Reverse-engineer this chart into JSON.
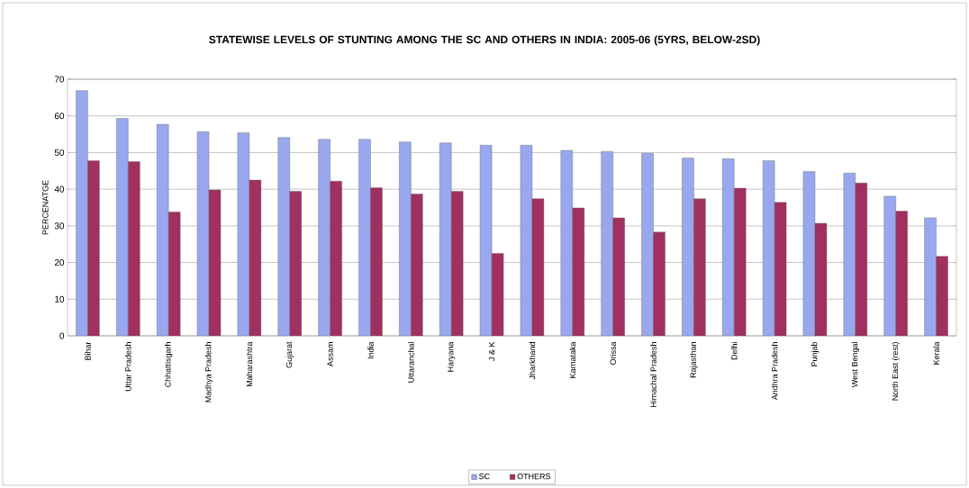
{
  "chart_data": {
    "type": "bar",
    "title": "STATEWISE LEVELS OF STUNTING AMONG THE SC AND OTHERS IN INDIA: 2005-06 (5YRS, BELOW-2SD)",
    "ylabel": "PERCENATGE",
    "categories": [
      "Bihar",
      "Uttar Pradesh",
      "Chhattisgarh",
      "Madhya Pradesh",
      "Maharashtra",
      "Gujarat",
      "Assam",
      "India",
      "Uttaranchal",
      "Haryana",
      "J & K",
      "Jharkhand",
      "Karnataka",
      "Orissa",
      "Himachal Pradesh",
      "Rajasthan",
      "Delhi",
      "Andhra Pradesh",
      "Punjab",
      "West Bengal",
      "North East (rest)",
      "Kerala"
    ],
    "series": [
      {
        "name": "SC",
        "color": "#99a8ee",
        "values": [
          66.9,
          59.3,
          57.7,
          55.7,
          55.4,
          54.1,
          53.6,
          53.6,
          52.9,
          52.6,
          52.0,
          52.0,
          50.6,
          50.3,
          49.8,
          48.5,
          48.3,
          47.8,
          44.8,
          44.4,
          38.1,
          32.2
        ]
      },
      {
        "name": "OTHERS",
        "color": "#a0305f",
        "values": [
          47.8,
          47.5,
          33.8,
          39.8,
          42.5,
          39.4,
          42.2,
          40.4,
          38.7,
          39.4,
          22.5,
          37.4,
          34.9,
          32.2,
          28.3,
          37.4,
          40.3,
          36.4,
          30.7,
          41.7,
          34.0,
          21.7
        ]
      }
    ],
    "ylim": [
      0,
      70
    ],
    "yticks": [
      0,
      10,
      20,
      30,
      40,
      50,
      60,
      70
    ],
    "grid": "y",
    "legend": "bottom"
  }
}
